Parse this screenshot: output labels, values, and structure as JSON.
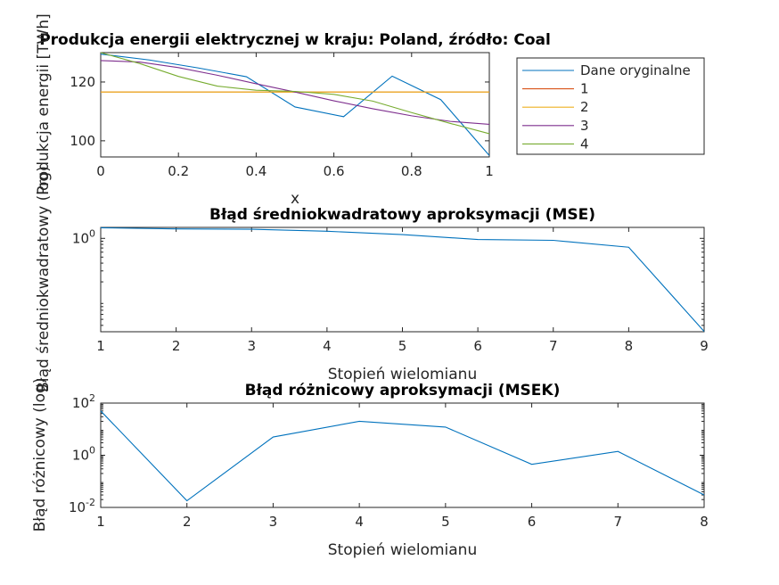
{
  "chart_data": [
    {
      "id": "plot1",
      "type": "line",
      "title": "Produkcja energii elektrycznej w kraju: Poland, źródło: Coal",
      "xlabel": "x",
      "ylabel": "Produkcja energii [TWh]",
      "xlim": [
        0,
        1
      ],
      "ylim": [
        94.5,
        130
      ],
      "xscale": "linear",
      "yscale": "linear",
      "xticks": [
        0,
        0.2,
        0.4,
        0.6,
        0.8,
        1
      ],
      "xtick_labels": [
        "0",
        "0.2",
        "0.4",
        "0.6",
        "0.8",
        "1"
      ],
      "yticks": [
        100,
        120
      ],
      "ytick_labels": [
        "100",
        "120"
      ],
      "legend_position": "right-outside",
      "series": [
        {
          "name": "Dane oryginalne",
          "color": "#0072bd",
          "x": [
            0,
            0.125,
            0.25,
            0.375,
            0.5,
            0.625,
            0.75,
            0.875,
            1
          ],
          "y": [
            129.5,
            127.5,
            124.8,
            121.8,
            111.5,
            108.2,
            122.0,
            114.0,
            95.0
          ]
        },
        {
          "name": "1",
          "color": "#d95319",
          "x": [
            0,
            1
          ],
          "y": [
            116.6,
            116.6
          ]
        },
        {
          "name": "2",
          "color": "#edb120",
          "x": [
            0,
            1
          ],
          "y": [
            116.6,
            116.6
          ]
        },
        {
          "name": "3",
          "color": "#7e2f8e",
          "x": [
            0,
            0.1,
            0.2,
            0.3,
            0.4,
            0.5,
            0.6,
            0.7,
            0.8,
            0.9,
            1
          ],
          "y": [
            127.3,
            126.8,
            124.9,
            122.3,
            119.4,
            116.6,
            113.6,
            110.9,
            108.5,
            106.6,
            105.6
          ]
        },
        {
          "name": "4",
          "color": "#77ac30",
          "x": [
            0,
            0.1,
            0.2,
            0.3,
            0.4,
            0.5,
            0.6,
            0.7,
            0.8,
            0.9,
            1
          ],
          "y": [
            130.0,
            126.3,
            121.9,
            118.6,
            117.2,
            116.8,
            115.8,
            113.5,
            109.6,
            105.9,
            102.4
          ]
        }
      ]
    },
    {
      "id": "plot2",
      "type": "line",
      "title": "Błąd średniokwadratowy aproksymacji (MSE)",
      "xlabel": "Stopień wielomianu",
      "ylabel": "Błąd średniokwadratowy (log)",
      "xlim": [
        1,
        9
      ],
      "ylim": [
        0.0316,
        1.5
      ],
      "xscale": "linear",
      "yscale": "log",
      "xticks": [
        1,
        2,
        3,
        4,
        5,
        6,
        7,
        8,
        9
      ],
      "xtick_labels": [
        "1",
        "2",
        "3",
        "4",
        "5",
        "6",
        "7",
        "8",
        "9"
      ],
      "yticks": [
        1
      ],
      "ytick_labels": [
        "10^0"
      ],
      "series": [
        {
          "name": "",
          "color": "#0072bd",
          "x": [
            1,
            2,
            3,
            4,
            5,
            6,
            7,
            8,
            9
          ],
          "y": [
            1.48,
            1.42,
            1.4,
            1.3,
            1.15,
            0.96,
            0.93,
            0.72,
            0.032
          ]
        }
      ]
    },
    {
      "id": "plot3",
      "type": "line",
      "title": "Błąd różnicowy aproksymacji (MSEK)",
      "xlabel": "Stopień wielomianu",
      "ylabel": "Błąd różnicowy (log)",
      "xlim": [
        1,
        8
      ],
      "ylim": [
        0.01,
        100
      ],
      "xscale": "linear",
      "yscale": "log",
      "xticks": [
        1,
        2,
        3,
        4,
        5,
        6,
        7,
        8
      ],
      "xtick_labels": [
        "1",
        "2",
        "3",
        "4",
        "5",
        "6",
        "7",
        "8"
      ],
      "yticks": [
        0.01,
        1,
        100
      ],
      "ytick_labels": [
        "10^-2",
        "10^0",
        "10^2"
      ],
      "series": [
        {
          "name": "",
          "color": "#0072bd",
          "x": [
            1,
            2,
            3,
            4,
            5,
            6,
            7,
            8
          ],
          "y": [
            50,
            0.018,
            5.0,
            20.0,
            12.0,
            0.45,
            1.4,
            0.03
          ]
        }
      ]
    }
  ]
}
